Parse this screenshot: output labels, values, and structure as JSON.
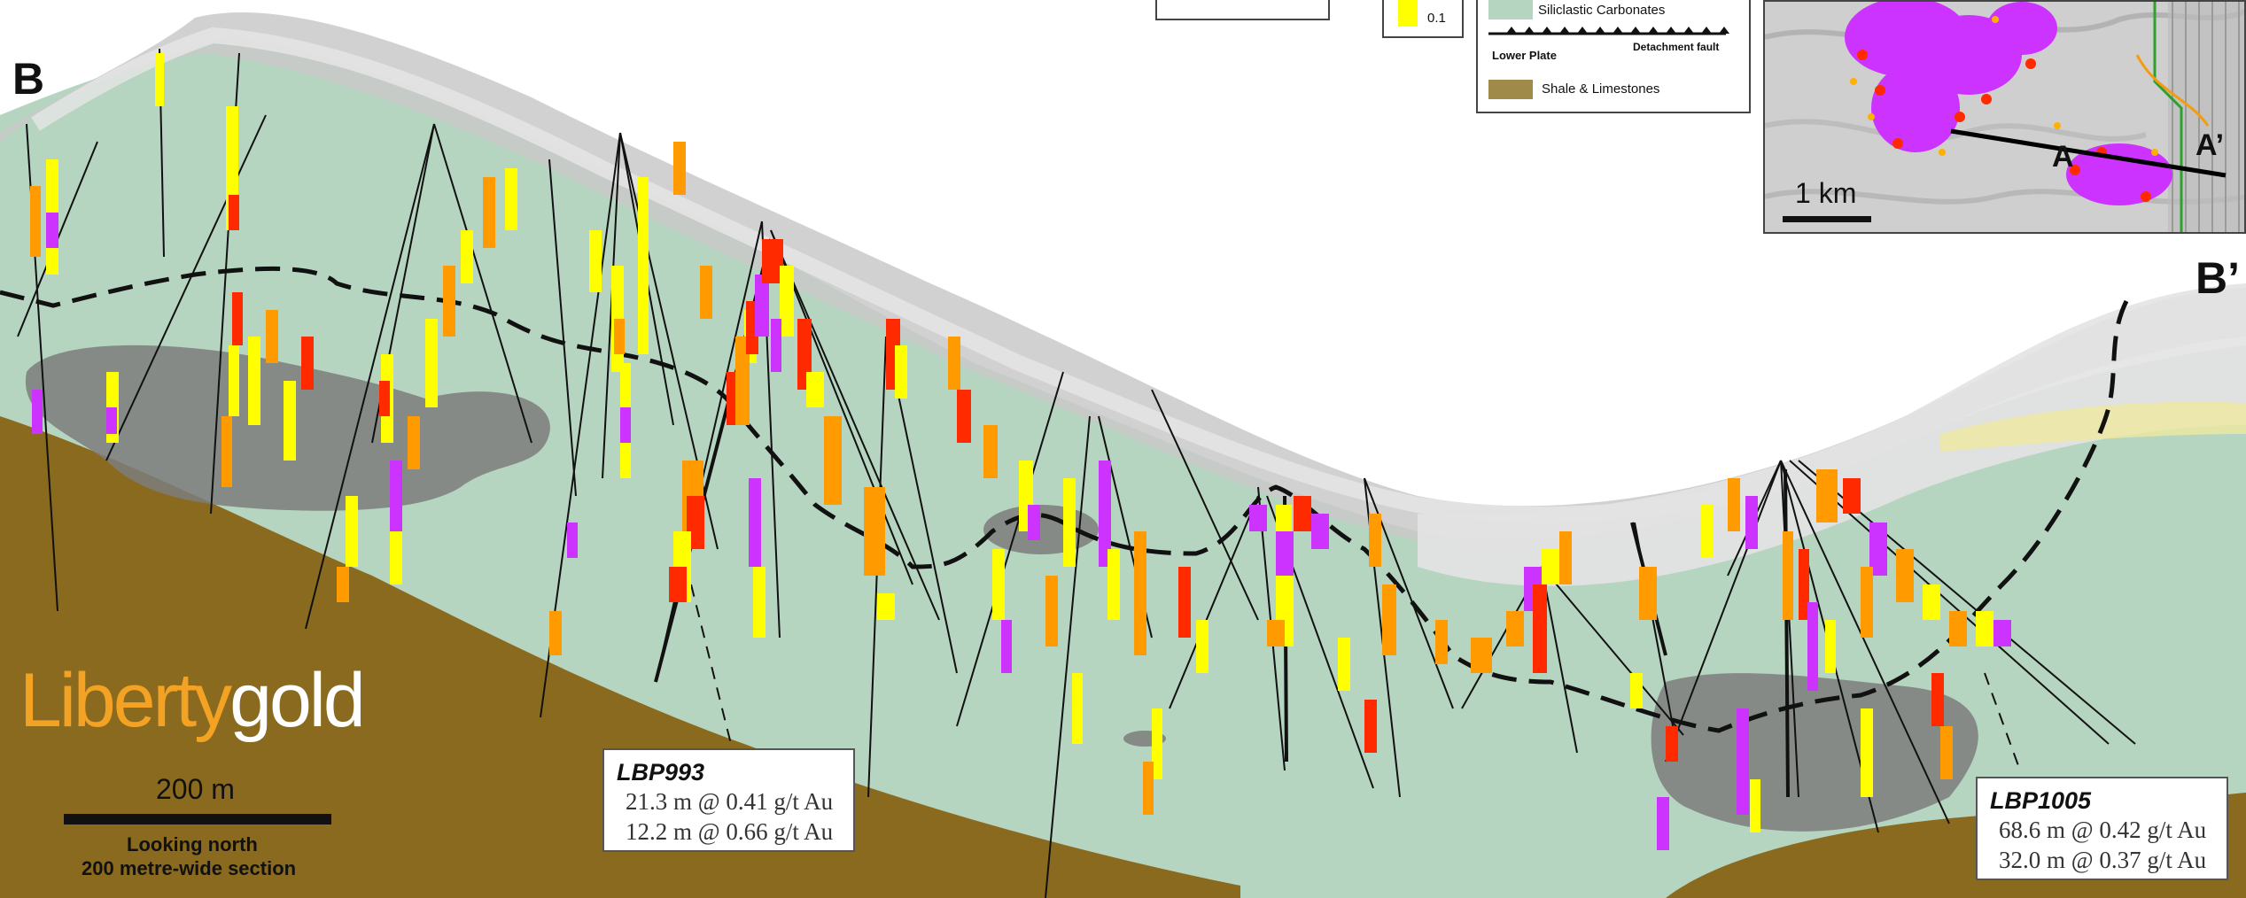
{
  "section": {
    "left_label": "B",
    "right_label": "B’",
    "colors": {
      "lower_plate_shale": "#8a6a1e",
      "siliclastic_carbonates": "#b6d5c0",
      "upper_ground": "#c9c9c9",
      "fault": "#111111",
      "grade_high": "#cc33ff",
      "grade_mid_high": "#ff2a00",
      "grade_mid": "#ff9a00",
      "grade_low": "#ffff00"
    }
  },
  "callouts": [
    {
      "hole": "LBP993",
      "intercepts": [
        "21.3 m @ 0.41 g/t Au",
        "12.2 m @ 0.66 g/t Au"
      ]
    },
    {
      "hole": "LBP1005",
      "intercepts": [
        "68.6 m @ 0.42 g/t Au",
        "32.0 m @ 0.37 g/t Au"
      ]
    }
  ],
  "logo": {
    "word1": "Liberty",
    "word2": "gold"
  },
  "scale_bar": {
    "label": "200 m",
    "caption_line1": "Looking north",
    "caption_line2": "200 metre-wide section"
  },
  "legend": {
    "grade_value": "0.1",
    "siliclastic": "Siliclastic Carbonates",
    "detachment": "Detachment fault",
    "lower_plate": "Lower Plate",
    "shale": "Shale & Limestones"
  },
  "inset": {
    "label_a": "A",
    "label_a_prime": "A’",
    "scale_label": "1 km"
  }
}
